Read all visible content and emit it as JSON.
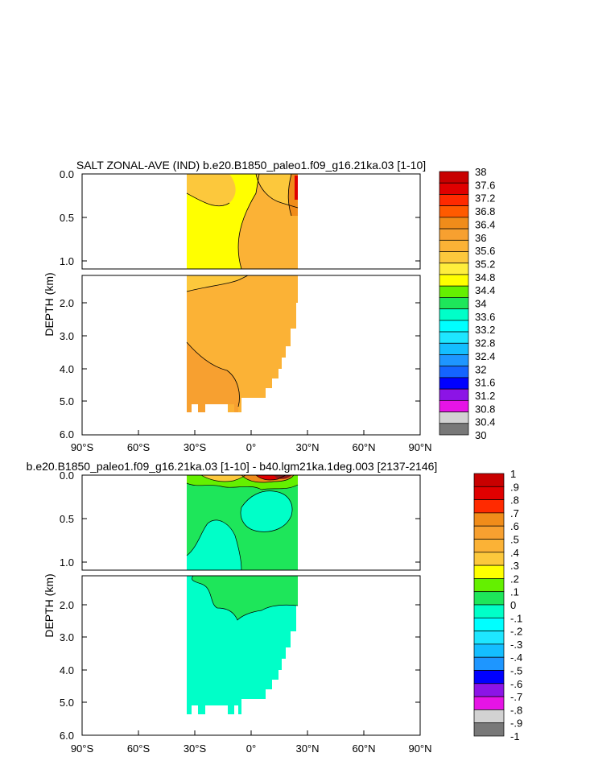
{
  "chart_data": [
    {
      "type": "heatmap",
      "title": "SALT ZONAL-AVE (IND) b.e20.B1850_paleo1.f09_g16.21ka.03 [1-10]",
      "ylabel": "DEPTH (km)",
      "xlabel": "",
      "x_ticks": [
        "90°S",
        "60°S",
        "30°S",
        "0°",
        "30°N",
        "60°N",
        "90°N"
      ],
      "y_ticks_upper": [
        "0.0",
        "0.5",
        "1.0"
      ],
      "y_ticks_lower": [
        "2.0",
        "3.0",
        "4.0",
        "5.0",
        "6.0"
      ],
      "colorbar_levels": [
        "38",
        "37.6",
        "37.2",
        "36.8",
        "36.4",
        "36",
        "35.6",
        "35.2",
        "34.8",
        "34.4",
        "34",
        "33.6",
        "33.2",
        "32.8",
        "32.4",
        "32",
        "31.6",
        "31.2",
        "30.8",
        "30.4",
        "30"
      ],
      "colorbar_colors": [
        "#c80000",
        "#e00000",
        "#ff2a00",
        "#ff5a00",
        "#f08c1a",
        "#f7a030",
        "#fbb236",
        "#fcc83c",
        "#ffee3c",
        "#ffff00",
        "#64f000",
        "#1ee65a",
        "#00ffc8",
        "#00ffff",
        "#1ee6ff",
        "#14beff",
        "#1e96ff",
        "#1464ff",
        "#0000ff",
        "#8c14e6",
        "#e614e6",
        "#d2d2d2",
        "#787878"
      ],
      "regions": [
        {
          "label": "surface 30°S–10°S",
          "value": 35.7
        },
        {
          "label": "upper 30°S–0°",
          "value": 35.0
        },
        {
          "label": "upper 0°–25°N",
          "value": 35.8
        },
        {
          "label": "surface 25°N",
          "value": 37.2
        },
        {
          "label": "deep ocean",
          "value": 35.8
        },
        {
          "label": "bottom 30°S–10°S",
          "value": 36.2
        }
      ]
    },
    {
      "type": "heatmap",
      "title": "b.e20.B1850_paleo1.f09_g16.21ka.03 [1-10] - b40.lgm21ka.1deg.003 [2137-2146]",
      "ylabel": "DEPTH (km)",
      "xlabel": "",
      "x_ticks": [
        "90°S",
        "60°S",
        "30°S",
        "0°",
        "30°N",
        "60°N",
        "90°N"
      ],
      "y_ticks_upper": [
        "0.0",
        "0.5",
        "1.0"
      ],
      "y_ticks_lower": [
        "2.0",
        "3.0",
        "4.0",
        "5.0",
        "6.0"
      ],
      "colorbar_levels": [
        "1",
        ".9",
        ".8",
        ".7",
        ".6",
        ".5",
        ".4",
        ".3",
        ".2",
        ".1",
        "0",
        "-.1",
        "-.2",
        "-.3",
        "-.4",
        "-.5",
        "-.6",
        "-.7",
        "-.8",
        "-.9",
        "-1"
      ],
      "colorbar_colors": [
        "#c80000",
        "#e00000",
        "#ff2a00",
        "#f08c1a",
        "#f7a030",
        "#fbb236",
        "#fcc83c",
        "#ffff00",
        "#64f000",
        "#1ee65a",
        "#00ffc8",
        "#00ffff",
        "#1ee6ff",
        "#14beff",
        "#1e96ff",
        "#0000ff",
        "#8c14e6",
        "#e614e6",
        "#d2d2d2",
        "#787878"
      ],
      "regions": [
        {
          "label": "upper ocean",
          "value": 0.05
        },
        {
          "label": "surface 0°–20°N",
          "value": 0.8
        },
        {
          "label": "intermediate",
          "value": 0.05
        },
        {
          "label": "deep ocean",
          "value": -0.05
        }
      ]
    }
  ]
}
